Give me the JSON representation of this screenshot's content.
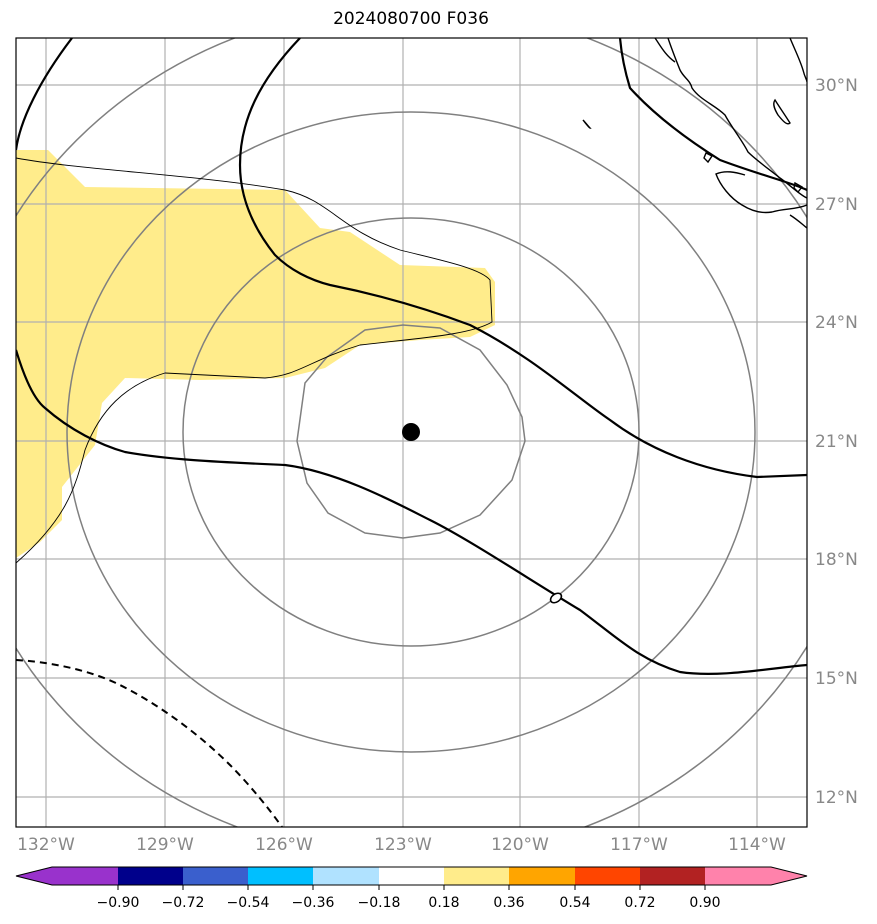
{
  "title": "2024080700 F036",
  "map": {
    "lon_labels": [
      "132°W",
      "129°W",
      "126°W",
      "123°W",
      "120°W",
      "117°W",
      "114°W"
    ],
    "lat_labels": [
      "30°N",
      "27°N",
      "24°N",
      "21°N",
      "18°N",
      "15°N",
      "12°N"
    ],
    "grid": true,
    "storm_center_marker": true,
    "contour_ring_color": "#808080",
    "shading_color": "#ffec8b",
    "gridline_color": "#b0b0b0"
  },
  "colorbar": {
    "tick_labels": [
      "−0.90",
      "−0.72",
      "−0.54",
      "−0.36",
      "−0.18",
      "0.18",
      "0.36",
      "0.54",
      "0.72",
      "0.90"
    ],
    "colors": [
      "#9932cc",
      "#00008b",
      "#3a5fcd",
      "#00bfff",
      "#b0e2ff",
      "#ffffff",
      "#ffec8b",
      "#ffa500",
      "#ff4500",
      "#b22222",
      "#ff82ab"
    ],
    "extend": "both"
  }
}
